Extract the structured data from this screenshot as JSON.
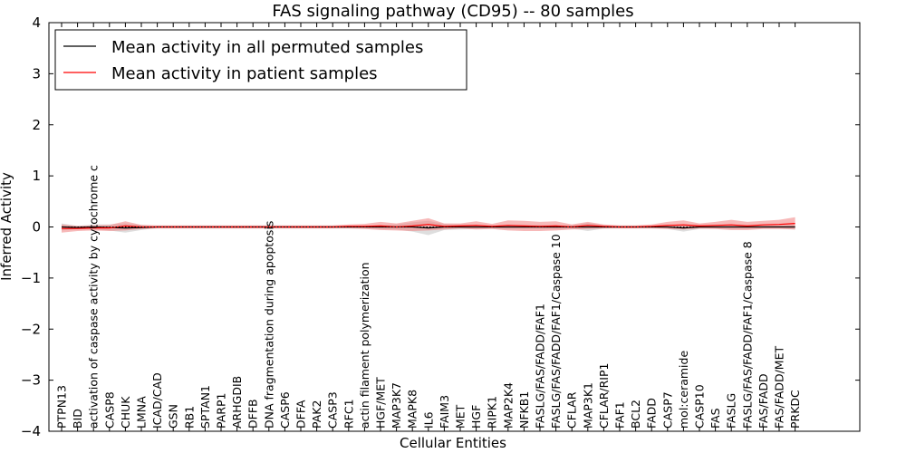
{
  "chart_data": {
    "type": "line",
    "title": "FAS signaling pathway (CD95) -- 80 samples",
    "xlabel": "Cellular Entities",
    "ylabel": "Inferred Activity",
    "ylim": [
      -4,
      4
    ],
    "yticks": [
      4,
      3,
      2,
      1,
      0,
      -1,
      -2,
      -3,
      -4
    ],
    "ytick_labels": [
      "4",
      "3",
      "2",
      "1",
      "0",
      "−1",
      "−2",
      "−3",
      "−4"
    ],
    "grid": false,
    "legend_position": "top-left",
    "categories": [
      "PTPN13",
      "BID",
      "activation of caspase activity by cytochrome c",
      "CASP8",
      "CHUK",
      "LMNA",
      "ICAD/CAD",
      "GSN",
      "RB1",
      "SPTAN1",
      "PARP1",
      "ARHGDIB",
      "DFFB",
      "DNA fragmentation during apoptosis",
      "CASP6",
      "DFFA",
      "PAK2",
      "CASP3",
      "RFC1",
      "actin filament polymerization",
      "HGF/MET",
      "MAP3K7",
      "MAPK8",
      "IL6",
      "FAIM3",
      "MET",
      "HGF",
      "RIPK1",
      "MAP2K4",
      "NFKB1",
      "FASLG/FAS/FADD/FAF1",
      "FASLG/FAS/FADD/FAF1/Caspase 10",
      "CFLAR",
      "MAP3K1",
      "CFLAR/RIP1",
      "FAF1",
      "BCL2",
      "FADD",
      "CASP7",
      "mol:ceramide",
      "CASP10",
      "FAS",
      "FASLG",
      "FASLG/FAS/FADD/FAF1/Caspase 8",
      "FAS/FADD",
      "FAS/FADD/MET",
      "PRKDC"
    ],
    "series": [
      {
        "name": "Mean activity in all permuted samples",
        "color": "#000000",
        "band_color": "#a0a0a0",
        "values": [
          0.0,
          -0.01,
          0.0,
          -0.01,
          -0.02,
          -0.01,
          0.0,
          0.0,
          0.0,
          0.0,
          0.0,
          0.0,
          0.0,
          0.0,
          0.0,
          0.0,
          0.0,
          0.0,
          0.0,
          0.0,
          0.0,
          0.0,
          0.0,
          -0.02,
          0.0,
          0.0,
          0.0,
          0.0,
          0.0,
          0.0,
          0.0,
          0.0,
          0.0,
          0.0,
          0.0,
          0.0,
          0.0,
          0.0,
          0.0,
          -0.02,
          0.0,
          0.0,
          0.0,
          0.0,
          0.0,
          0.0,
          0.0
        ],
        "band": [
          0.07,
          0.03,
          0.05,
          0.06,
          0.09,
          0.05,
          0.02,
          0.02,
          0.02,
          0.02,
          0.02,
          0.02,
          0.02,
          0.02,
          0.02,
          0.02,
          0.02,
          0.02,
          0.02,
          0.02,
          0.04,
          0.05,
          0.09,
          0.14,
          0.06,
          0.05,
          0.04,
          0.03,
          0.04,
          0.04,
          0.04,
          0.04,
          0.03,
          0.08,
          0.03,
          0.02,
          0.02,
          0.02,
          0.04,
          0.07,
          0.04,
          0.03,
          0.04,
          0.04,
          0.03,
          0.03,
          0.05
        ]
      },
      {
        "name": "Mean activity in patient samples",
        "color": "#ff0000",
        "band_color": "#f08080",
        "values": [
          -0.03,
          -0.03,
          -0.02,
          -0.02,
          0.02,
          0.0,
          0.0,
          0.0,
          0.0,
          0.0,
          0.0,
          0.0,
          0.0,
          0.0,
          0.0,
          0.0,
          0.0,
          0.0,
          0.01,
          0.01,
          0.02,
          0.0,
          0.02,
          0.05,
          0.01,
          0.02,
          0.03,
          0.01,
          0.03,
          0.02,
          0.01,
          0.02,
          0.0,
          0.03,
          0.01,
          0.0,
          0.0,
          0.01,
          0.03,
          0.04,
          0.02,
          0.03,
          0.04,
          0.02,
          0.04,
          0.05,
          0.07
        ],
        "band": [
          0.08,
          0.05,
          0.05,
          0.06,
          0.09,
          0.04,
          0.03,
          0.03,
          0.03,
          0.03,
          0.03,
          0.03,
          0.03,
          0.03,
          0.03,
          0.03,
          0.03,
          0.03,
          0.04,
          0.05,
          0.08,
          0.07,
          0.1,
          0.12,
          0.06,
          0.05,
          0.08,
          0.05,
          0.1,
          0.1,
          0.09,
          0.09,
          0.05,
          0.07,
          0.04,
          0.03,
          0.03,
          0.04,
          0.07,
          0.09,
          0.05,
          0.07,
          0.1,
          0.08,
          0.08,
          0.09,
          0.12
        ]
      }
    ]
  }
}
